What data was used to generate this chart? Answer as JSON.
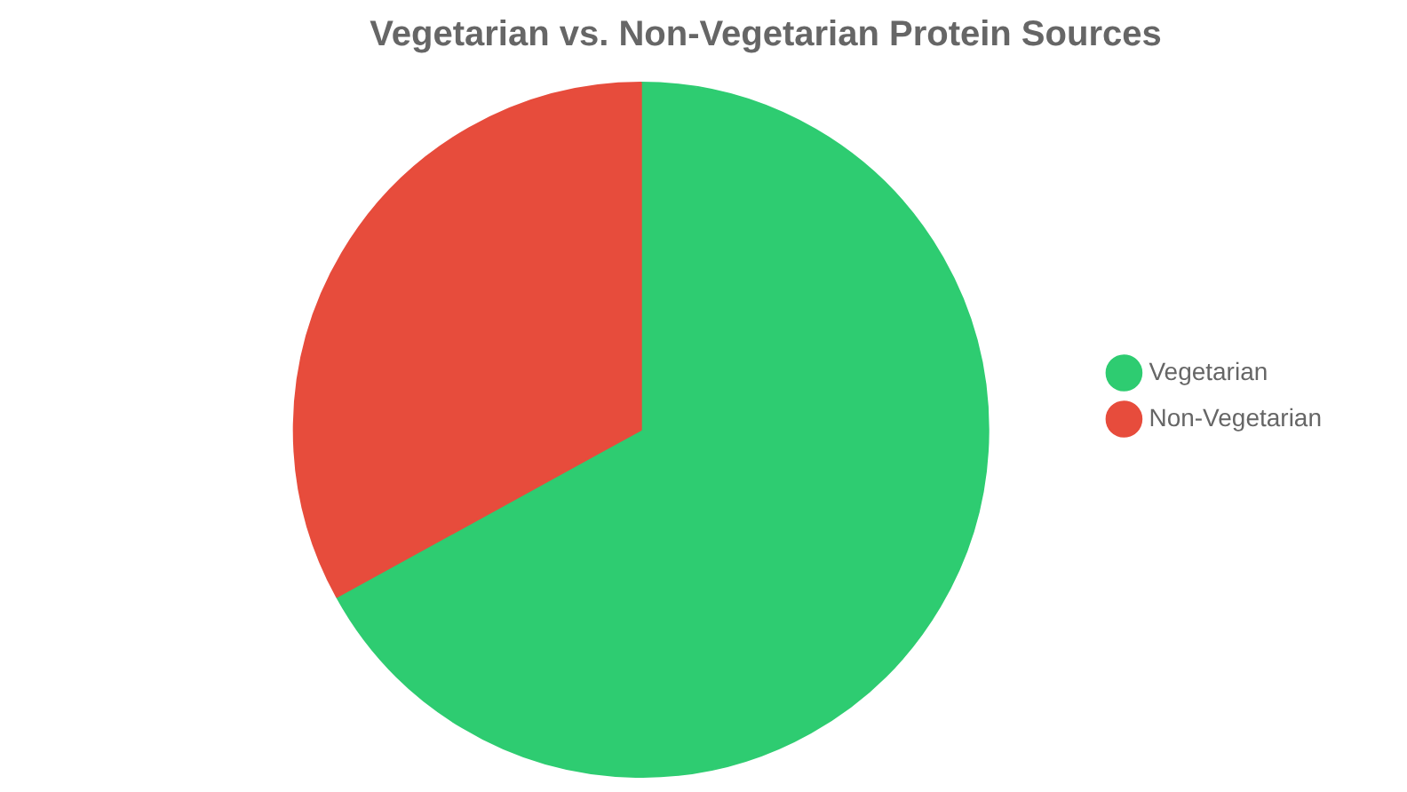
{
  "chart_data": {
    "type": "pie",
    "title": "Vegetarian vs. Non-Vegetarian Protein Sources",
    "categories": [
      "Vegetarian",
      "Non-Vegetarian"
    ],
    "values": [
      67,
      33
    ],
    "colors": [
      "#2ecc71",
      "#e74c3c"
    ],
    "legend": "right"
  }
}
